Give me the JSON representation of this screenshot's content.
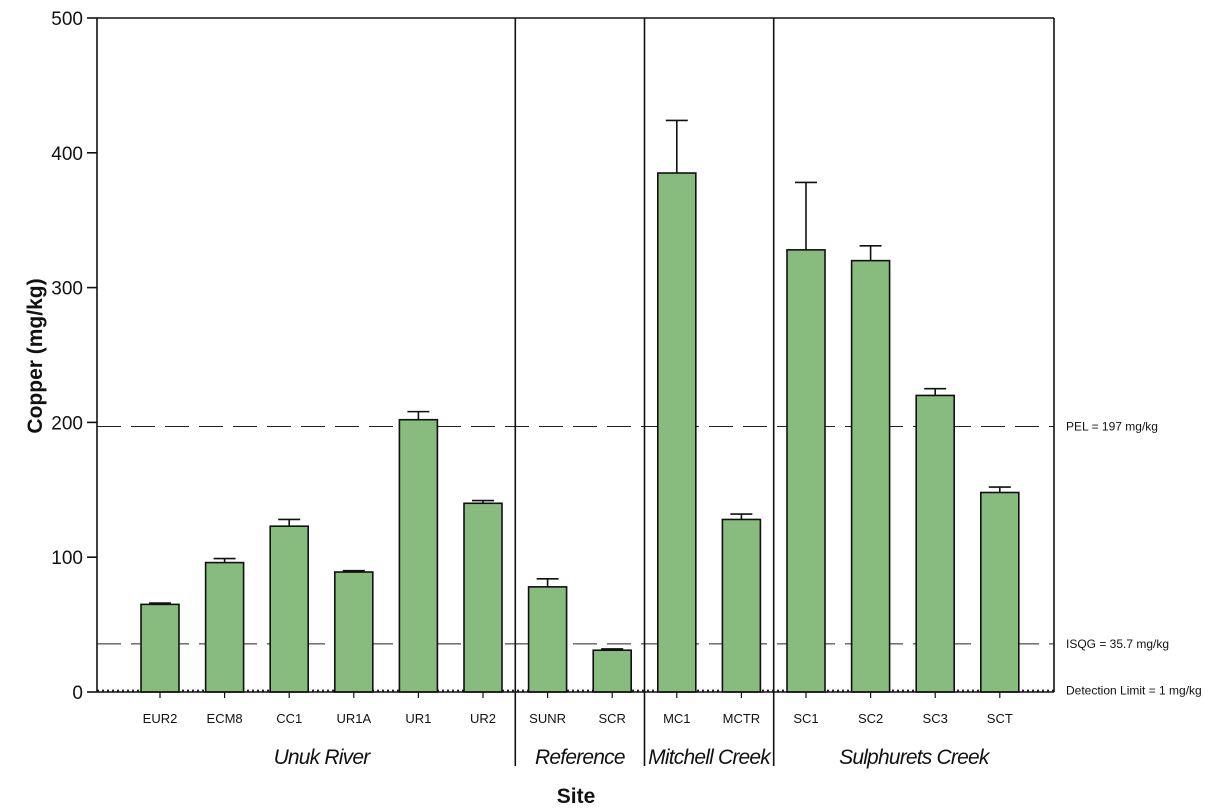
{
  "chart_data": {
    "type": "bar",
    "xlabel": "Site",
    "ylabel": "Copper (mg/kg)",
    "ylim": [
      0,
      500
    ],
    "yticks": [
      0,
      100,
      200,
      300,
      400,
      500
    ],
    "grid": false,
    "bar_color": "#88bb7e",
    "categories": [
      "EUR2",
      "ECM8",
      "CC1",
      "UR1A",
      "UR1",
      "UR2",
      "SUNR",
      "SCR",
      "MC1",
      "MCTR",
      "SC1",
      "SC2",
      "SC3",
      "SCT"
    ],
    "values": [
      65,
      96,
      123,
      89,
      202,
      140,
      78,
      31,
      385,
      128,
      328,
      320,
      220,
      148
    ],
    "error_upper": [
      66,
      99,
      128,
      90,
      208,
      142,
      84,
      32,
      424,
      132,
      378,
      331,
      225,
      152
    ],
    "groups": [
      {
        "label": "Unuk River",
        "categories": [
          "EUR2",
          "ECM8",
          "CC1",
          "UR1A",
          "UR1",
          "UR2"
        ]
      },
      {
        "label": "Reference",
        "categories": [
          "SUNR",
          "SCR"
        ]
      },
      {
        "label": "Mitchell Creek",
        "categories": [
          "MC1",
          "MCTR"
        ]
      },
      {
        "label": "Sulphurets Creek",
        "categories": [
          "SC1",
          "SC2",
          "SC3",
          "SCT"
        ]
      }
    ],
    "reference_lines": [
      {
        "value": 197,
        "label": "PEL = 197 mg/kg",
        "style": "dashed"
      },
      {
        "value": 35.7,
        "label": "ISQG = 35.7  mg/kg",
        "style": "dashed"
      },
      {
        "value": 1,
        "label": "Detection Limit = 1 mg/kg",
        "style": "dotted"
      }
    ]
  }
}
